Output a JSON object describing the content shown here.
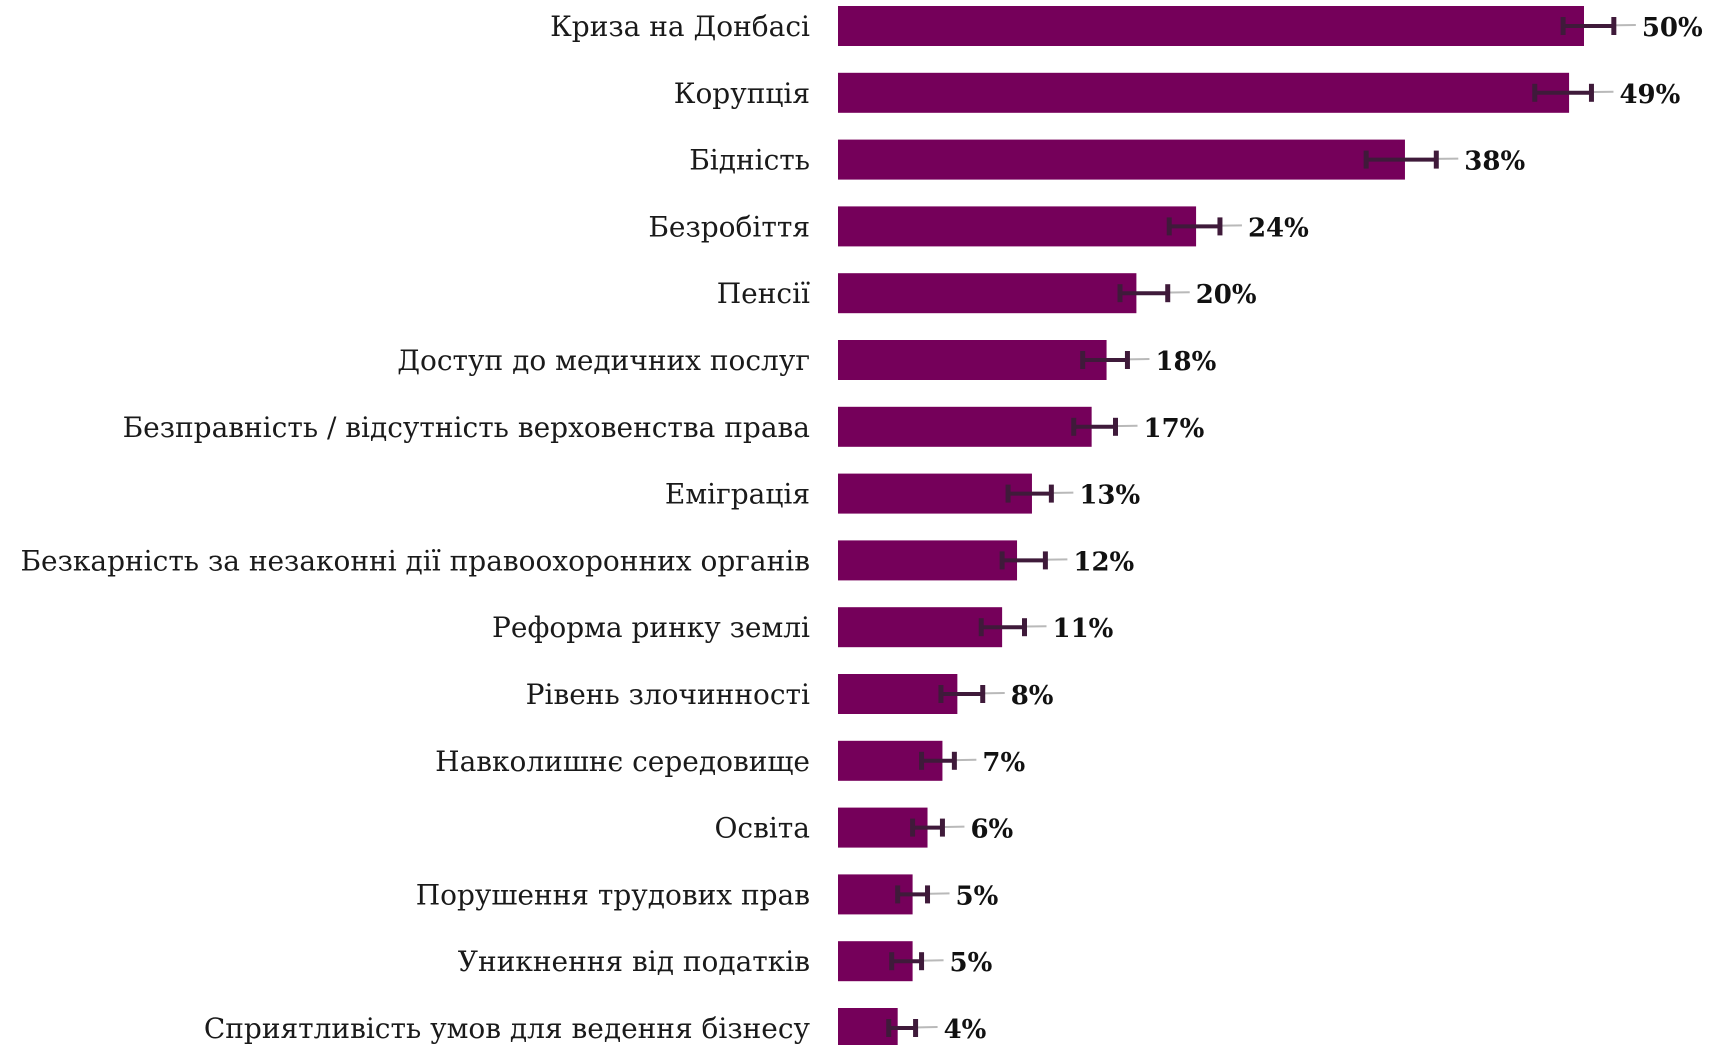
{
  "chart_data": {
    "type": "bar",
    "orientation": "horizontal",
    "title": "",
    "xlabel": "",
    "ylabel": "",
    "xlim": [
      0,
      55
    ],
    "grid": false,
    "legend": "none",
    "bar_color": "#75005A",
    "error_bar_color": "#3F1A3A",
    "categories": [
      "Криза на Донбасі",
      "Корупція",
      "Бідність",
      "Безробіття",
      "Пенсії",
      "Доступ до медичних послуг",
      "Безправність / відсутність верховенства права",
      "Еміграція",
      "Безкарність за незаконні дії правоохоронних органів",
      "Реформа ринку землі",
      "Рівень злочинності",
      "Навколишнє середовище",
      "Освіта",
      "Порушення трудових прав",
      "Уникнення від податків",
      "Сприятливість умов для ведення бізнесу"
    ],
    "values": [
      50,
      49,
      38,
      24,
      20,
      18,
      17,
      13,
      12,
      11,
      8,
      7,
      6,
      5,
      5,
      4
    ],
    "value_labels": [
      "50%",
      "49%",
      "38%",
      "24%",
      "20%",
      "18%",
      "17%",
      "13%",
      "12%",
      "11%",
      "8%",
      "7%",
      "6%",
      "5%",
      "5%",
      "4%"
    ],
    "error_low": [
      48.6,
      46.7,
      35.4,
      22.2,
      18.9,
      16.4,
      15.8,
      11.4,
      11.0,
      9.6,
      6.9,
      5.6,
      5.0,
      4.0,
      3.6,
      3.4
    ],
    "error_high": [
      52.0,
      50.5,
      40.1,
      25.6,
      22.1,
      19.4,
      18.6,
      14.3,
      13.9,
      12.5,
      9.7,
      7.8,
      7.0,
      6.0,
      5.6,
      5.2
    ]
  }
}
